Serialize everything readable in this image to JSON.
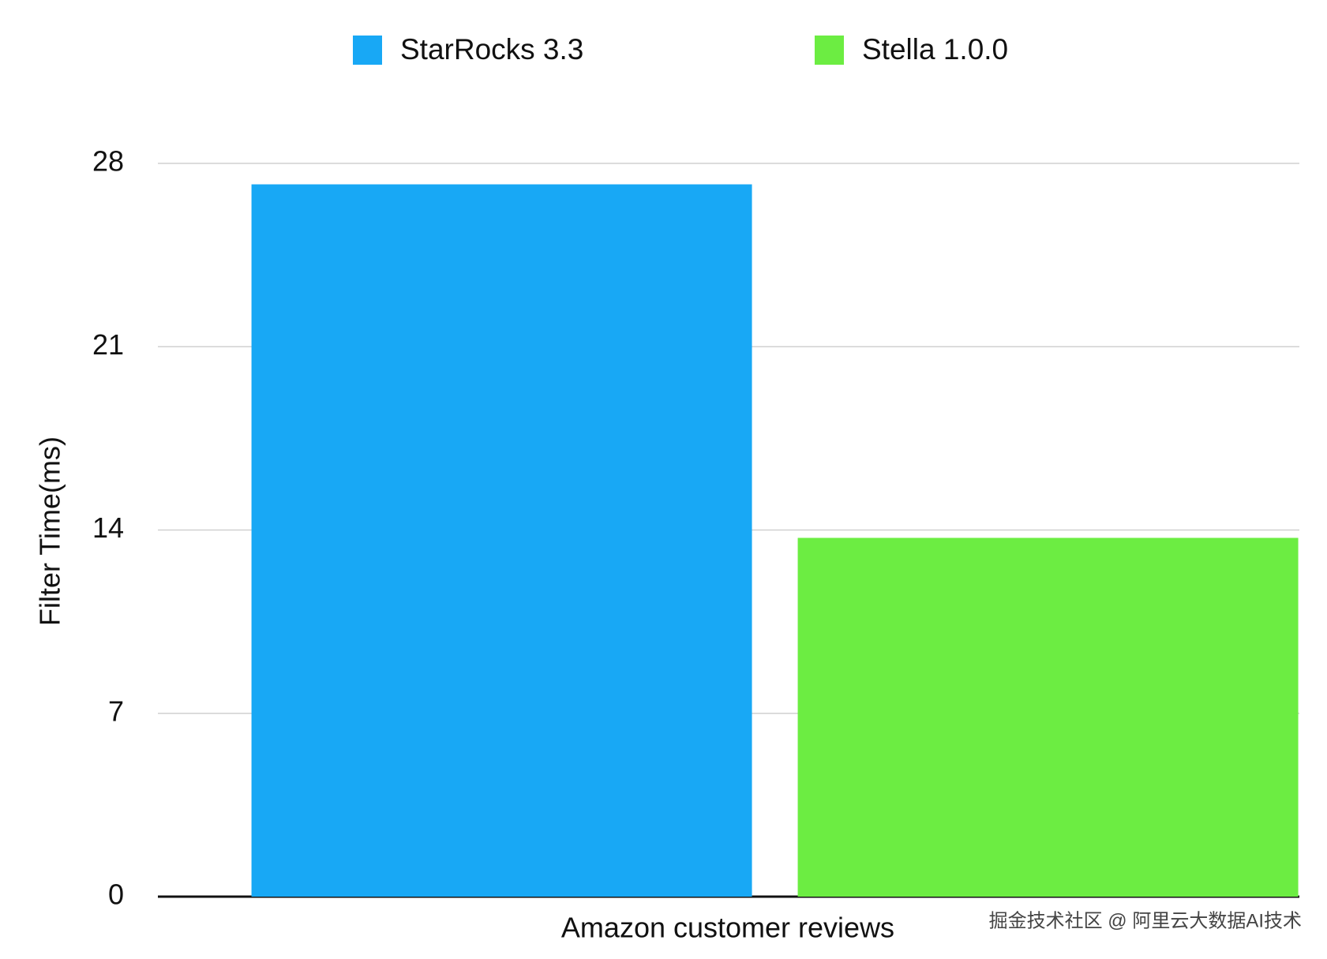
{
  "chart_data": {
    "type": "bar",
    "categories": [
      "Amazon customer reviews"
    ],
    "series": [
      {
        "name": "StarRocks 3.3",
        "color": "#18a8f5",
        "values": [
          27.2
        ]
      },
      {
        "name": "Stella 1.0.0",
        "color": "#6ced42",
        "values": [
          13.7
        ]
      }
    ],
    "y_label": "Filter Time(ms)",
    "ylim": [
      0,
      28
    ],
    "yticks": [
      0,
      7,
      14,
      21,
      28
    ],
    "grid": true,
    "legend": "top",
    "watermark": "掘金技术社区 @ 阿里云大数据AI技术"
  }
}
